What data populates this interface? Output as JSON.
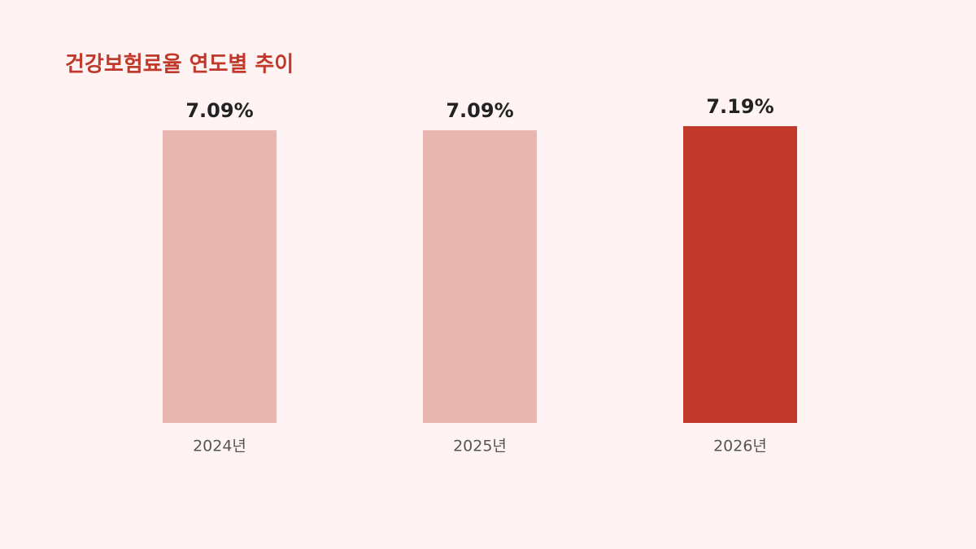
{
  "chart_data": {
    "type": "bar",
    "title": "건강보험료율 연도별 추이",
    "categories": [
      "2024년",
      "2025년",
      "2026년"
    ],
    "values": [
      7.09,
      7.09,
      7.19
    ],
    "value_labels": [
      "7.09%",
      "7.09%",
      "7.19%"
    ],
    "colors": [
      "#e8b5af",
      "#e8b5af",
      "#c0392b"
    ],
    "ylim": [
      0,
      8
    ]
  }
}
